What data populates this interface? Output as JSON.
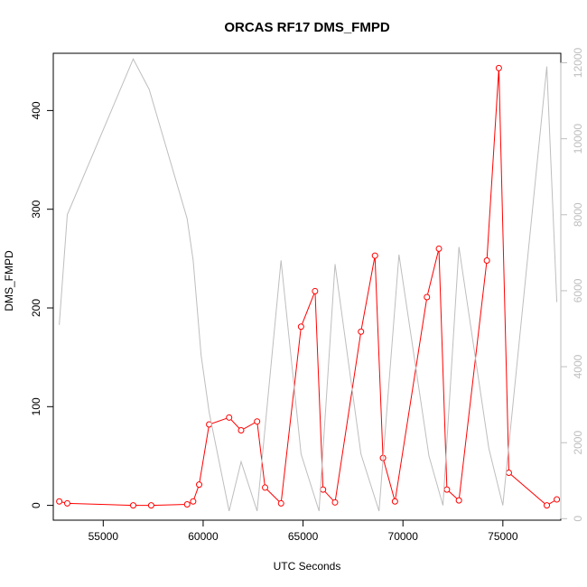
{
  "chart_data": {
    "type": "line",
    "title": "ORCAS RF17 DMS_FMPD",
    "xlabel": "UTC Seconds",
    "ylabel": "DMS_FMPD",
    "xlim": [
      52500,
      77900
    ],
    "ylim": [
      -15,
      458
    ],
    "y2lim": [
      -40,
      12250
    ],
    "xticks": [
      55000,
      60000,
      65000,
      70000,
      75000
    ],
    "yticks": [
      0,
      100,
      200,
      300,
      400
    ],
    "y2ticks": [
      0,
      2000,
      4000,
      6000,
      8000,
      10000,
      12000
    ],
    "grid": false,
    "colors": {
      "primary": "#ff0000",
      "secondary": "#bebebe",
      "axis": "#000000"
    },
    "series": [
      {
        "axis": "left",
        "style": "line+points",
        "x": [
          52800,
          53200,
          56500,
          57400,
          59200,
          59500,
          59800,
          60300,
          61300,
          61900,
          62700,
          63100,
          63900,
          64900,
          65600,
          66000,
          66600,
          67900,
          68600,
          69000,
          69600,
          71200,
          71800,
          72200,
          72800,
          74200,
          74800,
          75300,
          77200,
          77700
        ],
        "values": [
          4,
          2,
          0,
          0,
          1,
          4,
          21,
          82,
          89,
          76,
          85,
          18,
          2,
          181,
          217,
          16,
          3,
          176,
          253,
          48,
          4,
          211,
          260,
          16,
          5,
          248,
          443,
          33,
          0,
          6
        ]
      },
      {
        "axis": "right",
        "style": "line",
        "x": [
          52800,
          53200,
          56500,
          57300,
          59200,
          59500,
          59900,
          60300,
          61300,
          61900,
          62700,
          63900,
          64900,
          65800,
          66600,
          67900,
          68800,
          69800,
          71300,
          72000,
          72800,
          74300,
          75000,
          77200,
          77700
        ],
        "values": [
          5100,
          8000,
          12100,
          11300,
          7900,
          6800,
          4300,
          2800,
          200,
          1500,
          200,
          6800,
          1700,
          200,
          6700,
          1700,
          200,
          6950,
          1650,
          350,
          7150,
          1850,
          350,
          11900,
          5700
        ]
      }
    ]
  }
}
